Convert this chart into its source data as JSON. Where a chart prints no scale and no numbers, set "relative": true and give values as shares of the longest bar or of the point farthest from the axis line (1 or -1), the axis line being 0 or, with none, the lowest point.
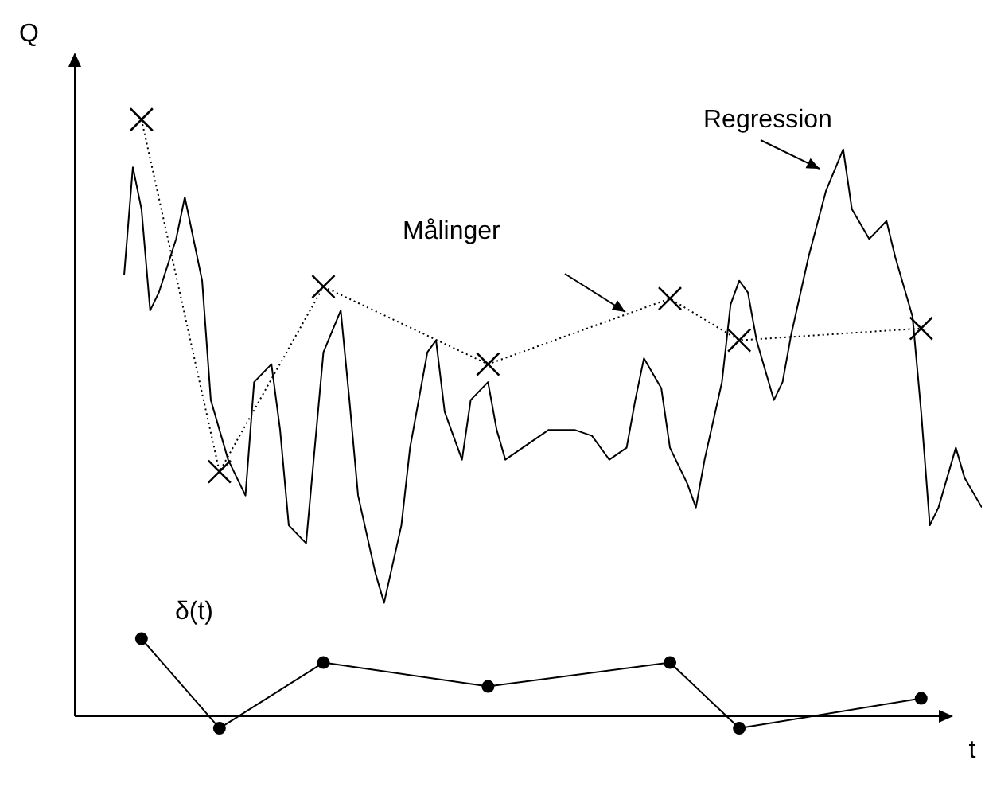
{
  "chart_data": {
    "type": "line",
    "relative": true,
    "xlabel": "t",
    "ylabel": "Q",
    "grid": false,
    "legend": false,
    "categories": [
      null,
      null,
      null,
      null,
      null,
      null,
      null,
      null,
      null,
      null,
      null,
      null,
      null,
      null,
      null,
      null,
      null,
      null,
      null,
      null,
      null,
      null,
      null,
      null,
      null,
      null,
      null,
      null,
      null,
      null,
      null,
      null,
      null,
      null,
      null,
      null,
      null,
      null,
      null,
      null,
      null,
      null,
      null,
      null,
      null,
      null,
      null,
      null,
      null,
      null,
      null,
      null,
      null,
      null,
      null,
      null,
      null,
      null,
      null,
      null,
      null,
      null,
      null,
      null,
      null,
      null,
      null,
      null,
      null,
      null,
      null,
      null,
      null,
      null,
      null,
      null,
      null,
      null,
      null,
      null,
      null,
      null,
      null,
      null,
      null,
      null,
      null,
      null,
      null,
      null,
      null,
      null,
      null,
      null,
      null,
      null,
      null,
      null,
      null,
      null
    ],
    "series": [
      {
        "name": "Regression",
        "color": "#000000",
        "line_style": "solid",
        "marker": "none",
        "values": [
          0.74,
          0.92,
          0.85,
          0.68,
          0.71,
          null,
          0.8,
          0.87,
          null,
          0.73,
          0.53,
          null,
          0.43,
          null,
          0.37,
          0.56,
          null,
          0.59,
          0.48,
          0.32,
          null,
          0.29,
          0.45,
          0.61,
          null,
          0.68,
          0.53,
          0.37,
          null,
          0.24,
          0.19,
          null,
          0.32,
          0.45,
          null,
          0.61,
          0.63,
          0.51,
          null,
          0.43,
          0.53,
          null,
          0.56,
          0.48,
          0.43,
          null,
          0.45,
          null,
          null,
          0.48,
          null,
          null,
          0.48,
          null,
          0.47,
          null,
          0.43,
          null,
          0.45,
          0.53,
          0.6,
          null,
          0.55,
          0.45,
          null,
          0.39,
          0.35,
          0.43,
          null,
          0.56,
          0.69,
          0.73,
          0.71,
          0.63,
          null,
          0.53,
          0.56,
          0.64,
          null,
          0.77,
          null,
          0.88,
          null,
          0.95,
          0.85,
          null,
          0.8,
          null,
          0.83,
          0.77,
          null,
          0.67,
          0.51,
          0.32,
          0.35,
          null,
          0.45,
          0.4,
          null,
          0.35
        ]
      },
      {
        "name": "Målinger",
        "color": "#000000",
        "line_style": "dotted",
        "marker": "cross",
        "values": [
          null,
          null,
          1.0,
          null,
          null,
          null,
          null,
          null,
          null,
          null,
          null,
          0.41,
          null,
          null,
          null,
          null,
          null,
          null,
          null,
          null,
          null,
          null,
          null,
          0.72,
          null,
          null,
          null,
          null,
          null,
          null,
          null,
          null,
          null,
          null,
          null,
          null,
          null,
          null,
          null,
          null,
          null,
          null,
          0.59,
          null,
          null,
          null,
          null,
          null,
          null,
          null,
          null,
          null,
          null,
          null,
          null,
          null,
          null,
          null,
          null,
          null,
          null,
          null,
          null,
          0.7,
          null,
          null,
          null,
          null,
          null,
          null,
          null,
          0.63,
          null,
          null,
          null,
          null,
          null,
          null,
          null,
          null,
          null,
          null,
          null,
          null,
          null,
          null,
          null,
          null,
          null,
          null,
          null,
          null,
          0.65,
          null,
          null,
          null,
          null,
          null,
          null,
          null
        ]
      },
      {
        "name": "δ(t)",
        "color": "#000000",
        "line_style": "solid",
        "marker": "circle",
        "values": [
          null,
          null,
          0.13,
          null,
          null,
          null,
          null,
          null,
          null,
          null,
          null,
          -0.02,
          null,
          null,
          null,
          null,
          null,
          null,
          null,
          null,
          null,
          null,
          null,
          0.09,
          null,
          null,
          null,
          null,
          null,
          null,
          null,
          null,
          null,
          null,
          null,
          null,
          null,
          null,
          null,
          null,
          null,
          null,
          0.05,
          null,
          null,
          null,
          null,
          null,
          null,
          null,
          null,
          null,
          null,
          null,
          null,
          null,
          null,
          null,
          null,
          null,
          null,
          null,
          null,
          0.09,
          null,
          null,
          null,
          null,
          null,
          null,
          null,
          -0.02,
          null,
          null,
          null,
          null,
          null,
          null,
          null,
          null,
          null,
          null,
          null,
          null,
          null,
          null,
          null,
          null,
          null,
          null,
          null,
          null,
          0.03,
          null,
          null,
          null,
          null,
          null,
          null,
          null
        ]
      }
    ]
  }
}
